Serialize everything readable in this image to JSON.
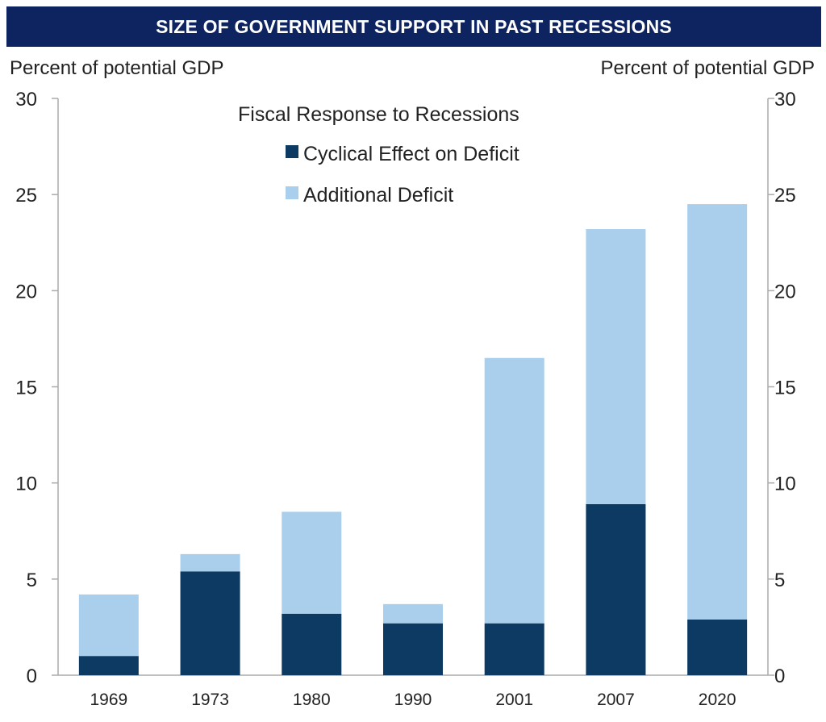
{
  "banner": {
    "title": "SIZE OF GOVERNMENT SUPPORT IN PAST RECESSIONS",
    "background": "#0d2461"
  },
  "chart_data": {
    "type": "bar",
    "stacked": true,
    "categories": [
      "1969",
      "1973",
      "1980",
      "1990",
      "2001",
      "2007",
      "2020"
    ],
    "series": [
      {
        "name": "Cyclical Effect on Deficit",
        "color": "#0d3a63",
        "values": [
          1.0,
          5.4,
          3.2,
          2.7,
          2.7,
          8.9,
          2.9
        ]
      },
      {
        "name": "Additional Deficit",
        "color": "#a9cfec",
        "values": [
          3.2,
          0.9,
          5.3,
          1.0,
          13.8,
          14.3,
          21.6
        ]
      }
    ],
    "legend_title": "Fiscal Response to Recessions",
    "legend_position": "top-center",
    "ylabel_left": "Percent of potential GDP",
    "ylabel_right": "Percent of potential GDP",
    "ylim": [
      0,
      30
    ],
    "yticks": [
      "0",
      "5",
      "10",
      "15",
      "20",
      "25",
      "30"
    ],
    "grid": false,
    "axis_color": "#aaaaaa"
  }
}
